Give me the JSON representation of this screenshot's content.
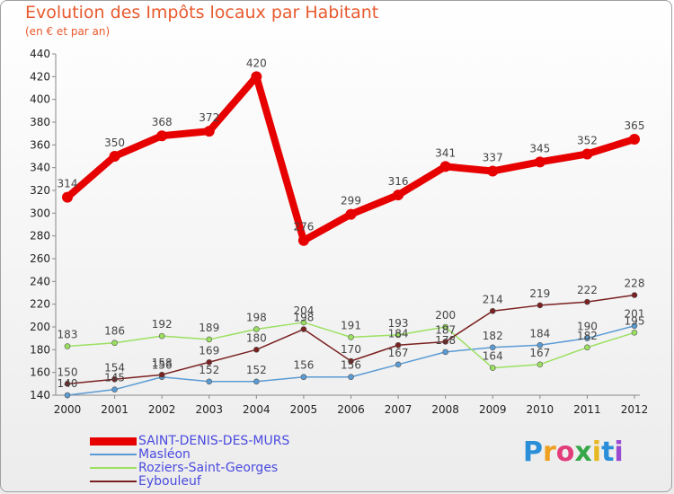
{
  "chart_data": {
    "type": "line",
    "title": "Evolution des Impôts locaux par Habitant",
    "subtitle": "(en € et par an)",
    "xlabel": "",
    "ylabel": "",
    "categories": [
      "2000",
      "2001",
      "2002",
      "2003",
      "2004",
      "2005",
      "2006",
      "2007",
      "2008",
      "2009",
      "2010",
      "2011",
      "2012"
    ],
    "ylim": [
      140,
      440
    ],
    "yticks": [
      140,
      160,
      180,
      200,
      220,
      240,
      260,
      280,
      300,
      320,
      340,
      360,
      380,
      400,
      420,
      440
    ],
    "grid": false,
    "legend_position": "bottom-left",
    "series": [
      {
        "name": "SAINT-DENIS-DES-MURS",
        "color": "#e60000",
        "values": [
          314,
          350,
          368,
          372,
          420,
          276,
          299,
          316,
          341,
          337,
          345,
          352,
          365
        ]
      },
      {
        "name": "Masléon",
        "color": "#5a9bd4",
        "values": [
          140,
          145,
          156,
          152,
          152,
          156,
          156,
          167,
          178,
          182,
          184,
          190,
          201
        ]
      },
      {
        "name": "Roziers-Saint-Georges",
        "color": "#9be060",
        "values": [
          183,
          186,
          192,
          189,
          198,
          204,
          191,
          193,
          200,
          164,
          167,
          182,
          195
        ]
      },
      {
        "name": "Eybouleuf",
        "color": "#7a2020",
        "values": [
          150,
          154,
          158,
          169,
          180,
          198,
          170,
          184,
          187,
          214,
          219,
          222,
          228
        ]
      }
    ]
  },
  "logo": {
    "letters": [
      "P",
      "r",
      "o",
      "x",
      "i",
      "t",
      "i"
    ]
  }
}
